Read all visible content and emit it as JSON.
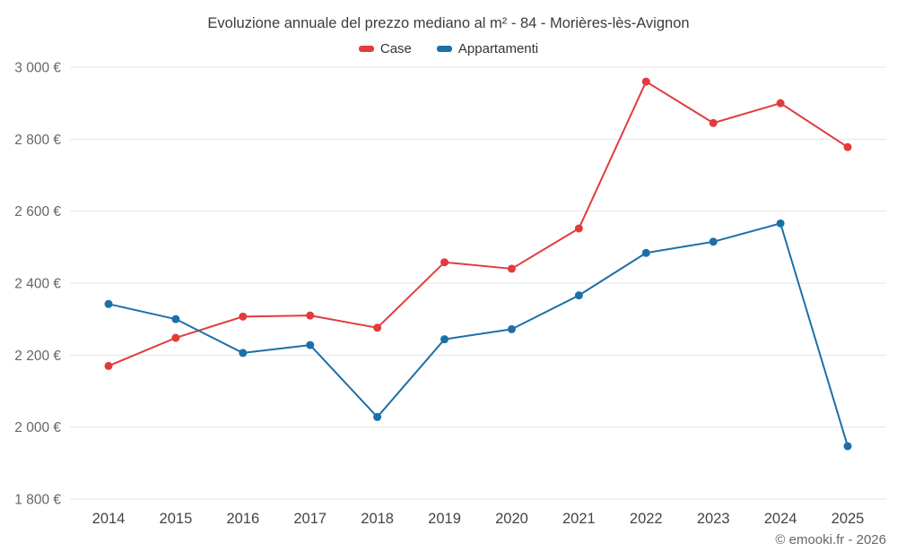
{
  "header": {
    "title": "Evoluzione annuale del prezzo mediano al m² - 84 - Morières-lès-Avignon"
  },
  "footer": {
    "copyright": "© emooki.fr - 2026"
  },
  "colors": {
    "case_red": "#e23b3e",
    "appartamenti_blue": "#1d6fa8",
    "grid": "#e6e6e6",
    "axis_text": "#666666",
    "x_axis_text": "#444444"
  },
  "chart_data": {
    "type": "line",
    "title": "Evoluzione annuale del prezzo mediano al m² - 84 - Morières-lès-Avignon",
    "xlabel": "",
    "ylabel": "",
    "categories": [
      "2014",
      "2015",
      "2016",
      "2017",
      "2018",
      "2019",
      "2020",
      "2021",
      "2022",
      "2023",
      "2024",
      "2025"
    ],
    "series": [
      {
        "name": "Case",
        "color": "#e23b3e",
        "values": [
          2170,
          2248,
          2307,
          2310,
          2276,
          2458,
          2440,
          2552,
          2960,
          2845,
          2900,
          2778
        ]
      },
      {
        "name": "Appartamenti",
        "color": "#1d6fa8",
        "values": [
          2342,
          2300,
          2206,
          2228,
          2028,
          2244,
          2272,
          2366,
          2484,
          2515,
          2566,
          1947
        ]
      }
    ],
    "ylim": [
      1800,
      3000
    ],
    "yticks": [
      1800,
      2000,
      2200,
      2400,
      2600,
      2800,
      3000
    ],
    "ytick_labels": [
      "1 800 €",
      "2 000 €",
      "2 200 €",
      "2 400 €",
      "2 600 €",
      "2 800 €",
      "3 000 €"
    ],
    "grid": "horizontal",
    "legend_position": "top"
  }
}
